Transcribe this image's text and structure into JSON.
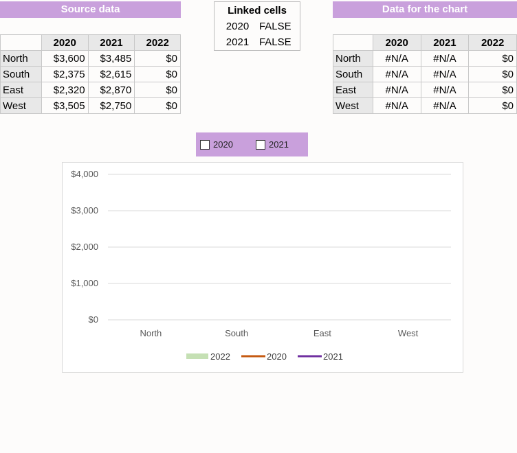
{
  "source": {
    "header": "Source data",
    "years": [
      "2020",
      "2021",
      "2022"
    ],
    "rows": [
      {
        "region": "North",
        "values": [
          "$3,600",
          "$3,485",
          "$0"
        ]
      },
      {
        "region": "South",
        "values": [
          "$2,375",
          "$2,615",
          "$0"
        ]
      },
      {
        "region": "East",
        "values": [
          "$2,320",
          "$2,870",
          "$0"
        ]
      },
      {
        "region": "West",
        "values": [
          "$3,505",
          "$2,750",
          "$0"
        ]
      }
    ]
  },
  "linked": {
    "title": "Linked cells",
    "rows": [
      {
        "year": "2020",
        "value": "FALSE"
      },
      {
        "year": "2021",
        "value": "FALSE"
      }
    ]
  },
  "chart_table": {
    "header": "Data for the chart",
    "years": [
      "2020",
      "2021",
      "2022"
    ],
    "rows": [
      {
        "region": "North",
        "values": [
          "#N/A",
          "#N/A",
          "$0"
        ]
      },
      {
        "region": "South",
        "values": [
          "#N/A",
          "#N/A",
          "$0"
        ]
      },
      {
        "region": "East",
        "values": [
          "#N/A",
          "#N/A",
          "$0"
        ]
      },
      {
        "region": "West",
        "values": [
          "#N/A",
          "#N/A",
          "$0"
        ]
      }
    ]
  },
  "checkboxes": [
    {
      "label": "2020",
      "checked": false
    },
    {
      "label": "2021",
      "checked": false
    }
  ],
  "chart_data": {
    "type": "bar",
    "categories": [
      "North",
      "South",
      "East",
      "West"
    ],
    "y_ticks": [
      "$0",
      "$1,000",
      "$2,000",
      "$3,000",
      "$4,000"
    ],
    "ylim": [
      0,
      4000
    ],
    "grid": true,
    "legend_position": "bottom",
    "series": [
      {
        "name": "2022",
        "type": "bar",
        "values": [
          0,
          0,
          0,
          0
        ],
        "color": "#c5e0b4"
      },
      {
        "name": "2020",
        "type": "line",
        "values": [
          null,
          null,
          null,
          null
        ],
        "color": "#c55a11"
      },
      {
        "name": "2021",
        "type": "line",
        "values": [
          null,
          null,
          null,
          null
        ],
        "color": "#7030a0"
      }
    ]
  }
}
